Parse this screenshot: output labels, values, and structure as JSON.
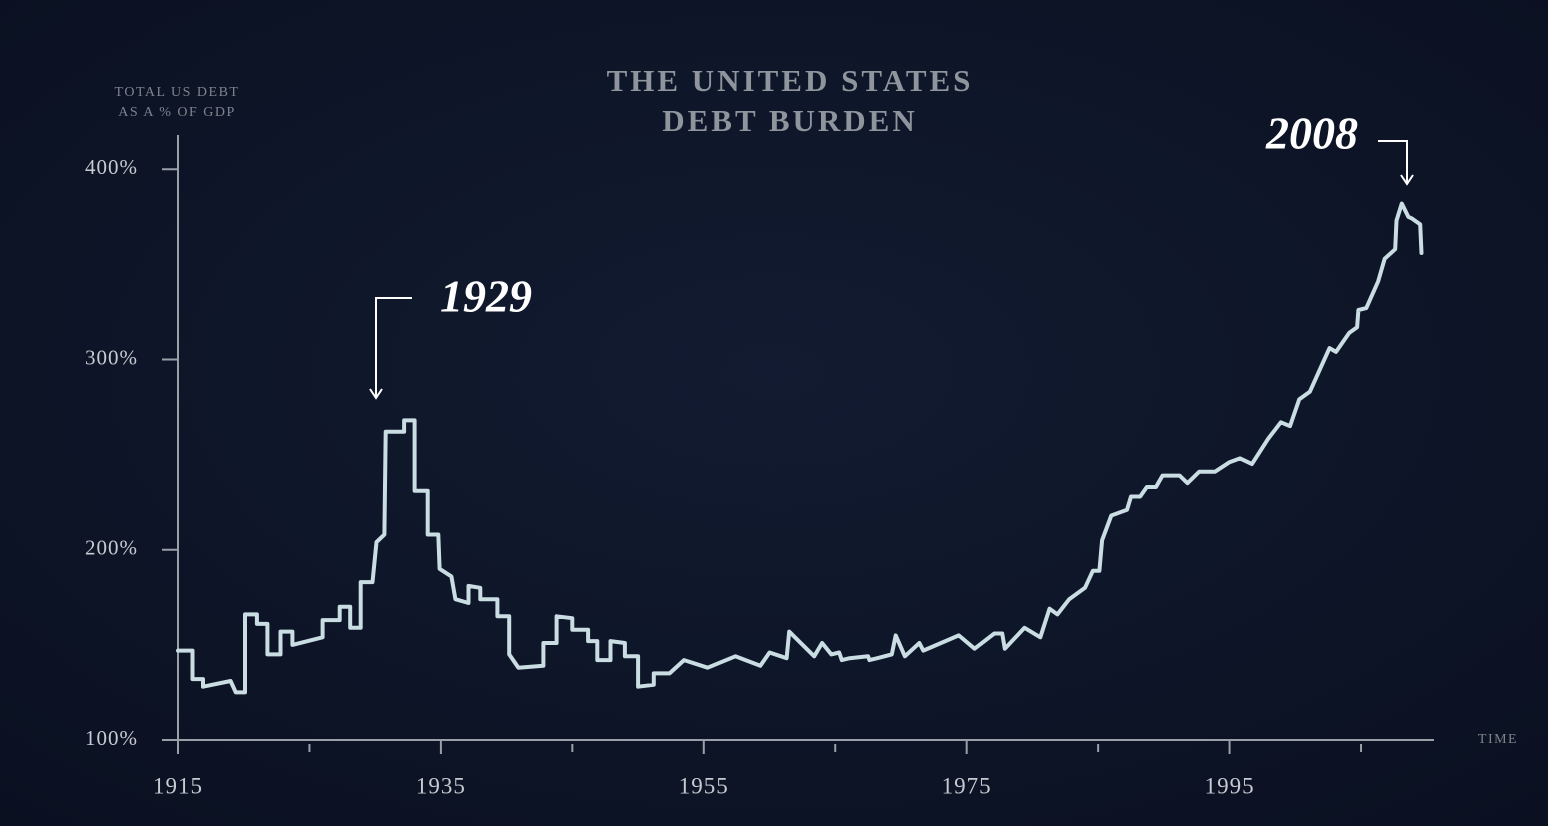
{
  "chart_data": {
    "type": "line",
    "title": [
      "THE UNITED STATES",
      "DEBT BURDEN"
    ],
    "ylabel": [
      "TOTAL US DEBT",
      "AS A % OF GDP"
    ],
    "xlabel": "TIME",
    "annotations": [
      "1929",
      "2008"
    ],
    "color": "#c9dde3",
    "xlim": [
      1915,
      2010.4
    ],
    "ylim": [
      100,
      418
    ],
    "xticks": [
      1915,
      1935,
      1955,
      1975,
      1995
    ],
    "xminorticks": [
      1925,
      1945,
      1965,
      1985,
      2005
    ],
    "yticks": [
      {
        "value": 100,
        "label": "100%"
      },
      {
        "value": 200,
        "label": "200%"
      },
      {
        "value": 300,
        "label": "300%"
      },
      {
        "value": 400,
        "label": "400%"
      }
    ],
    "x": [
      1915.0,
      1916.1,
      1916.1,
      1916.9,
      1916.9,
      1919.0,
      1919.4,
      1920.1,
      1920.1,
      1921.0,
      1921.0,
      1921.8,
      1921.8,
      1922.8,
      1922.8,
      1923.7,
      1923.7,
      1926.0,
      1926.0,
      1927.3,
      1927.3,
      1928.1,
      1928.1,
      1928.9,
      1928.9,
      1929.8,
      1930.1,
      1930.7,
      1930.8,
      1932.2,
      1932.2,
      1933.0,
      1933.0,
      1934.0,
      1934.0,
      1934.8,
      1934.9,
      1935.8,
      1936.1,
      1937.1,
      1937.1,
      1938.0,
      1938.0,
      1939.3,
      1939.3,
      1940.2,
      1940.2,
      1940.9,
      1942.8,
      1942.8,
      1943.8,
      1943.8,
      1945.0,
      1945.0,
      1946.2,
      1946.2,
      1946.9,
      1946.9,
      1947.9,
      1947.9,
      1949.0,
      1949.0,
      1950.0,
      1950.0,
      1951.2,
      1951.2,
      1952.4,
      1953.5,
      1955.3,
      1957.4,
      1959.3,
      1960.0,
      1961.3,
      1961.5,
      1963.4,
      1964.0,
      1964.7,
      1965.3,
      1965.5,
      1966.1,
      1967.5,
      1967.6,
      1968.2,
      1969.3,
      1969.6,
      1970.3,
      1971.4,
      1971.7,
      1974.4,
      1975.6,
      1977.1,
      1977.7,
      1977.9,
      1979.4,
      1980.6,
      1981.3,
      1981.9,
      1982.8,
      1984.0,
      1984.6,
      1985.1,
      1985.3,
      1986.0,
      1987.2,
      1987.5,
      1988.2,
      1988.7,
      1989.4,
      1989.9,
      1991.2,
      1991.8,
      1992.7,
      1993.9,
      1995.0,
      1995.8,
      1996.7,
      1997.9,
      1998.9,
      1999.6,
      2000.3,
      2001.1,
      2002.6,
      2003.1,
      2004.1,
      2004.7,
      2004.8,
      2005.4,
      2006.3,
      2006.8,
      2007.6,
      2007.7,
      2008.1,
      2008.6,
      2008.9,
      2009.5,
      2009.6
    ],
    "values": [
      147,
      147,
      132,
      132,
      128,
      131,
      125,
      125,
      166,
      166,
      161,
      161,
      145,
      145,
      157,
      157,
      150,
      154,
      163,
      163,
      170,
      170,
      159,
      159,
      183,
      183,
      204,
      208,
      262,
      262,
      268,
      268,
      231,
      231,
      208,
      208,
      190,
      186,
      174,
      172,
      181,
      180,
      174,
      174,
      165,
      165,
      145,
      138,
      139,
      151,
      151,
      165,
      164,
      158,
      158,
      152,
      152,
      142,
      142,
      152,
      151,
      144,
      144,
      128,
      129,
      135,
      135,
      142,
      138,
      144,
      139,
      146,
      143,
      157,
      144,
      151,
      145,
      146,
      142,
      143,
      144,
      142,
      143,
      145,
      155,
      144,
      151,
      147,
      155,
      148,
      156,
      156,
      148,
      159,
      154,
      169,
      166,
      174,
      180,
      189,
      189,
      205,
      218,
      221,
      228,
      228,
      233,
      233,
      239,
      239,
      235,
      241,
      241,
      246,
      248,
      245,
      258,
      267,
      265,
      279,
      283,
      306,
      304,
      314,
      317,
      326,
      327,
      341,
      353,
      358,
      373,
      382,
      375,
      374,
      371,
      356
    ]
  }
}
